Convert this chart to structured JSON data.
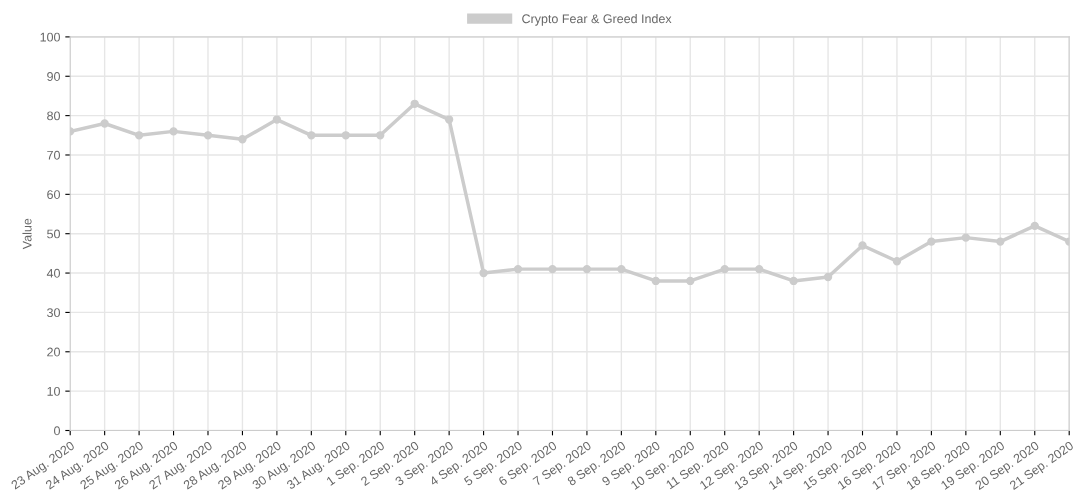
{
  "chart_data": {
    "type": "line",
    "categories": [
      "23 Aug. 2020",
      "24 Aug. 2020",
      "25 Aug. 2020",
      "26 Aug. 2020",
      "27 Aug. 2020",
      "28 Aug. 2020",
      "29 Aug. 2020",
      "30 Aug. 2020",
      "31 Aug. 2020",
      "1 Sep. 2020",
      "2 Sep. 2020",
      "3 Sep. 2020",
      "4 Sep. 2020",
      "5 Sep. 2020",
      "6 Sep. 2020",
      "7 Sep. 2020",
      "8 Sep. 2020",
      "9 Sep. 2020",
      "10 Sep. 2020",
      "11 Sep. 2020",
      "12 Sep. 2020",
      "13 Sep. 2020",
      "14 Sep. 2020",
      "15 Sep. 2020",
      "16 Sep. 2020",
      "17 Sep. 2020",
      "18 Sep. 2020",
      "19 Sep. 2020",
      "20 Sep. 2020",
      "21 Sep. 2020"
    ],
    "series": [
      {
        "name": "Crypto Fear & Greed Index",
        "color": "#cccccc",
        "values": [
          76,
          78,
          75,
          76,
          75,
          74,
          79,
          75,
          75,
          75,
          83,
          79,
          40,
          41,
          41,
          41,
          41,
          38,
          38,
          41,
          41,
          38,
          39,
          47,
          43,
          48,
          49,
          48,
          52,
          48
        ]
      }
    ],
    "ylabel": "Value",
    "ylim": [
      0,
      100
    ],
    "yticks": [
      0,
      10,
      20,
      30,
      40,
      50,
      60,
      70,
      80,
      90,
      100
    ],
    "grid": true,
    "legend": "top",
    "marker": "circle",
    "line_style": "solid"
  }
}
